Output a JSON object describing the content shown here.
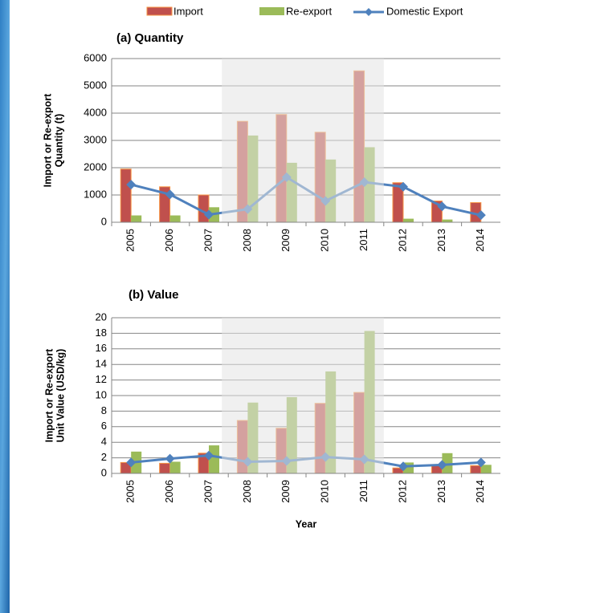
{
  "chart_data": [
    {
      "type": "bar",
      "title": "(a) Quantity",
      "ylabel": [
        "Import or Re-export",
        "Quantity (t)"
      ],
      "categories": [
        "2005",
        "2006",
        "2007",
        "2008",
        "2009",
        "2010",
        "2011",
        "2012",
        "2013",
        "2014"
      ],
      "shaded_categories": [
        "2008",
        "2011"
      ],
      "series": [
        {
          "name": "Import",
          "kind": "bar",
          "color": "#c0504d",
          "values": [
            1950,
            1300,
            1000,
            3700,
            3950,
            3300,
            5550,
            1450,
            780,
            720
          ]
        },
        {
          "name": "Re-export",
          "kind": "bar",
          "color": "#9bbb59",
          "values": [
            250,
            250,
            550,
            3180,
            2180,
            2300,
            2750,
            130,
            100,
            0
          ]
        },
        {
          "name": "Domestic Export",
          "kind": "line",
          "color": "#4f81bd",
          "values": [
            1380,
            1020,
            280,
            480,
            1650,
            780,
            1470,
            1300,
            580,
            260
          ]
        }
      ],
      "ylim": [
        0,
        6000
      ],
      "yticks": [
        0,
        1000,
        2000,
        3000,
        4000,
        5000,
        6000
      ],
      "grid": true
    },
    {
      "type": "bar",
      "title": "(b) Value",
      "ylabel": [
        "Import or Re-export",
        "Unit Value (USD/kg)"
      ],
      "xlabel": "Year",
      "categories": [
        "2005",
        "2006",
        "2007",
        "2008",
        "2009",
        "2010",
        "2011",
        "2012",
        "2013",
        "2014"
      ],
      "shaded_categories": [
        "2008",
        "2011"
      ],
      "series": [
        {
          "name": "Import",
          "kind": "bar",
          "color": "#c0504d",
          "values": [
            1.4,
            1.3,
            2.6,
            6.8,
            5.8,
            9.0,
            10.4,
            0.7,
            1.1,
            1.0
          ]
        },
        {
          "name": "Re-export",
          "kind": "bar",
          "color": "#9bbb59",
          "values": [
            2.8,
            1.5,
            3.6,
            9.1,
            9.8,
            13.1,
            18.3,
            1.4,
            2.6,
            1.1
          ]
        },
        {
          "name": "Domestic Export",
          "kind": "line",
          "color": "#4f81bd",
          "values": [
            1.4,
            1.9,
            2.3,
            1.5,
            1.6,
            2.1,
            1.8,
            0.9,
            1.1,
            1.4
          ]
        }
      ],
      "ylim": [
        0,
        20
      ],
      "yticks": [
        0,
        2,
        4,
        6,
        8,
        10,
        12,
        14,
        16,
        18,
        20
      ],
      "grid": true
    }
  ]
}
